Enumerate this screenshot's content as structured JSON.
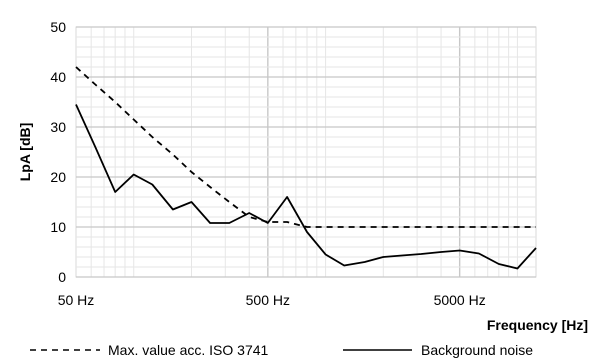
{
  "chart_data": {
    "type": "line",
    "title": "",
    "xlabel": "Frequency [Hz]",
    "ylabel": "LpA [dB]",
    "x_scale": "log",
    "xlim": [
      50,
      12500
    ],
    "ylim": [
      0,
      50
    ],
    "y_ticks": [
      0,
      10,
      20,
      30,
      40,
      50
    ],
    "y_tick_labels": [
      "0",
      "10",
      "20",
      "30",
      "40",
      "50"
    ],
    "x_ticks": [
      50,
      500,
      5000
    ],
    "x_tick_labels": [
      "50 Hz",
      "500 Hz",
      "5000 Hz"
    ],
    "grid": true,
    "legend_position": "bottom",
    "series": [
      {
        "name": "Max. value acc. ISO 3741",
        "style": "dashed",
        "color": "#000000",
        "x": [
          50,
          63,
          80,
          100,
          125,
          160,
          200,
          250,
          315,
          400,
          500,
          630,
          800,
          1000,
          1250,
          1600,
          2000,
          2500,
          3150,
          4000,
          5000,
          6300,
          8000,
          10000,
          12500
        ],
        "y": [
          42,
          38.5,
          35,
          31.5,
          28,
          24.5,
          21,
          18,
          15,
          12,
          11,
          11,
          10,
          10,
          10,
          10,
          10,
          10,
          10,
          10,
          10,
          10,
          10,
          10,
          10
        ]
      },
      {
        "name": "Background noise",
        "style": "solid",
        "color": "#000000",
        "x": [
          50,
          63,
          80,
          100,
          125,
          160,
          200,
          250,
          315,
          400,
          500,
          630,
          800,
          1000,
          1250,
          1600,
          2000,
          2500,
          3150,
          4000,
          5000,
          6300,
          8000,
          10000,
          12500
        ],
        "y": [
          34.5,
          26,
          17,
          20.5,
          18.5,
          13.5,
          15,
          10.8,
          10.8,
          12.8,
          10.8,
          16,
          9,
          4.5,
          2.3,
          3,
          4,
          4.3,
          4.6,
          5,
          5.3,
          4.7,
          2.6,
          1.7,
          5.8
        ]
      }
    ]
  }
}
